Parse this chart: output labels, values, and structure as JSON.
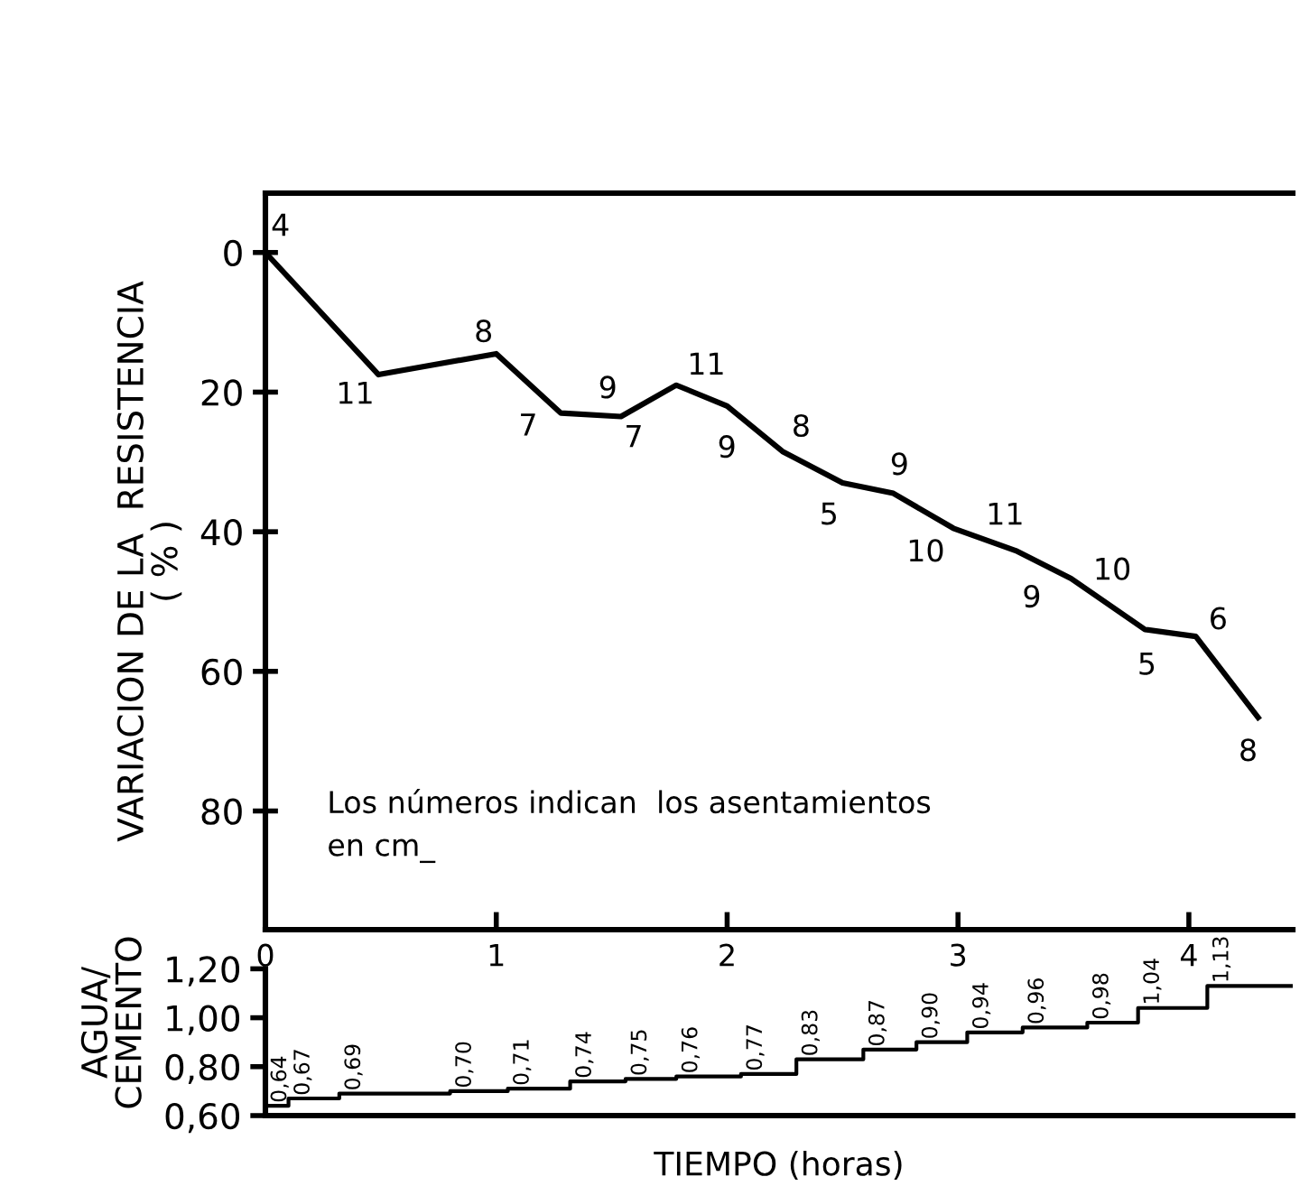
{
  "chart_data": [
    {
      "type": "line",
      "ylabel": "VARIACION DE LA  RESISTENCIA\n( % )",
      "x": [
        0,
        0.49,
        1.0,
        1.28,
        1.54,
        1.78,
        2.0,
        2.24,
        2.5,
        2.72,
        2.98,
        3.25,
        3.49,
        3.81,
        4.03,
        4.3
      ],
      "values": [
        0,
        17.5,
        14.5,
        23,
        23.5,
        19,
        22,
        28.5,
        33,
        34.5,
        39.5,
        42.7,
        46.7,
        54,
        55,
        66.6
      ],
      "color": "#000000",
      "xlim": [
        0,
        4.45
      ],
      "xticks": [
        0,
        1,
        2,
        3,
        4
      ],
      "ylim": [
        97,
        -8.5
      ],
      "yticks": [
        0,
        20,
        40,
        60,
        80
      ],
      "tick_labels": "y",
      "grid": false,
      "legend": false,
      "marker": "none",
      "line_style": "solid",
      "annotations": [
        "4",
        "11",
        "8",
        "7",
        "9",
        "7",
        "11",
        "9",
        "8",
        "5",
        "9",
        "10",
        "11",
        "9",
        "10",
        "5",
        "6",
        "8",
        "Los números indican  los asentamientos\nen cm_"
      ]
    },
    {
      "type": "step",
      "ylabel": "AGUA/\nCEMENTO",
      "xlabel": "TIEMPO (horas)",
      "x": [
        0,
        0.1,
        0.32,
        0.8,
        1.05,
        1.32,
        1.56,
        1.78,
        2.06,
        2.3,
        2.59,
        2.82,
        3.04,
        3.28,
        3.56,
        3.78,
        4.08,
        4.45
      ],
      "values": [
        0.64,
        0.67,
        0.69,
        0.7,
        0.71,
        0.74,
        0.75,
        0.76,
        0.77,
        0.83,
        0.87,
        0.9,
        0.94,
        0.96,
        0.98,
        1.04,
        1.13,
        1.13
      ],
      "value_labels": [
        "0,64",
        "0,67",
        "0,69",
        "0,70",
        "0,71",
        "0,74",
        "0,75",
        "0,76",
        "0,77",
        "0,83",
        "0,87",
        "0,90",
        "0,94",
        "0,96",
        "0,98",
        "1,04",
        "1,13",
        null
      ],
      "color": "#000000",
      "xlim": [
        0,
        4.45
      ],
      "xticks": [
        0,
        1,
        2,
        3,
        4
      ],
      "ylim": [
        0.6,
        1.36
      ],
      "yticks": [
        {
          "value": 0.6,
          "label": "0,60"
        },
        {
          "value": 0.8,
          "label": "0,80"
        },
        {
          "value": 1.0,
          "label": "1,00"
        },
        {
          "value": 1.2,
          "label": "1,20"
        }
      ],
      "grid": false,
      "legend": false
    }
  ]
}
